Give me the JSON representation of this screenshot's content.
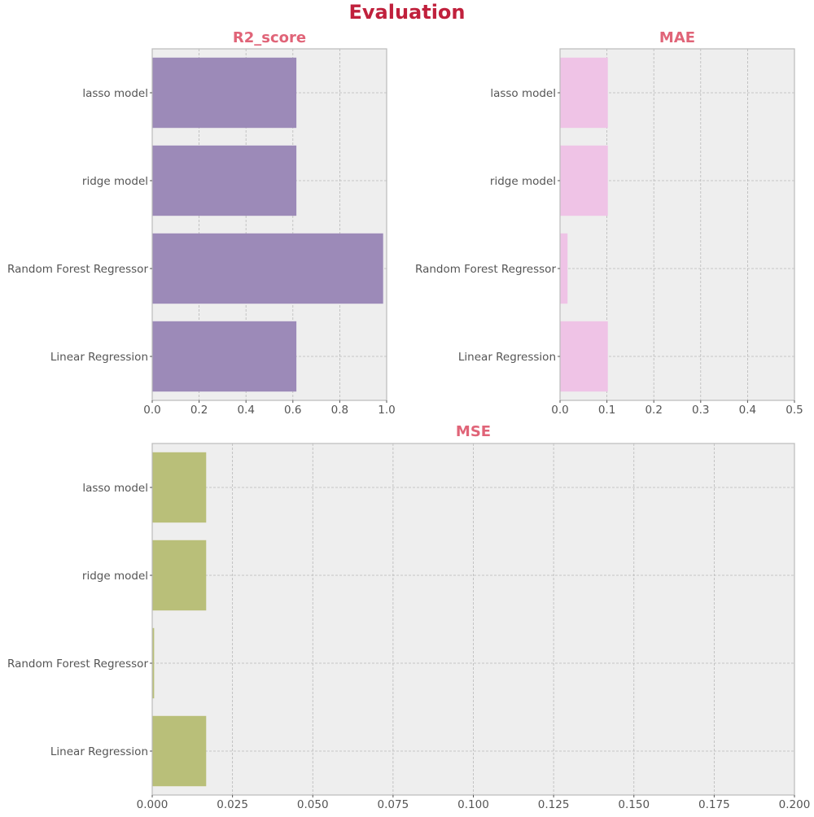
{
  "figure": {
    "title": "Evaluation",
    "title_color": "#C0203C",
    "subplot_title_color": "#E06478"
  },
  "style": {
    "axes_background": "#EEEEEE",
    "grid_color": "#B8B8B8",
    "spine_color": "#BBBBBB"
  },
  "chart_data": [
    {
      "type": "bar",
      "orientation": "horizontal",
      "title": "R2_score",
      "xlabel": "",
      "ylabel": "",
      "categories": [
        "Linear Regression",
        "Random Forest Regressor",
        "ridge model",
        "lasso model"
      ],
      "values": [
        0.615,
        0.985,
        0.615,
        0.615
      ],
      "xlim": [
        0,
        1.0
      ],
      "xticks": [
        "0.0",
        "0.2",
        "0.4",
        "0.6",
        "0.8",
        "1.0"
      ],
      "xtick_values": [
        0,
        0.2,
        0.4,
        0.6,
        0.8,
        1.0
      ],
      "grid": true,
      "bar_color": "#9C8AB8"
    },
    {
      "type": "bar",
      "orientation": "horizontal",
      "title": "MAE",
      "xlabel": "",
      "ylabel": "",
      "categories": [
        "Linear Regression",
        "Random Forest Regressor",
        "ridge model",
        "lasso model"
      ],
      "values": [
        0.102,
        0.016,
        0.102,
        0.102
      ],
      "xlim": [
        0,
        0.5
      ],
      "xticks": [
        "0.0",
        "0.1",
        "0.2",
        "0.3",
        "0.4",
        "0.5"
      ],
      "xtick_values": [
        0,
        0.1,
        0.2,
        0.3,
        0.4,
        0.5
      ],
      "grid": true,
      "bar_color": "#EFC3E6"
    },
    {
      "type": "bar",
      "orientation": "horizontal",
      "title": "MSE",
      "xlabel": "",
      "ylabel": "",
      "categories": [
        "Linear Regression",
        "Random Forest Regressor",
        "ridge model",
        "lasso model"
      ],
      "values": [
        0.0168,
        0.0006,
        0.0168,
        0.0168
      ],
      "xlim": [
        0,
        0.2
      ],
      "xticks": [
        "0.000",
        "0.025",
        "0.050",
        "0.075",
        "0.100",
        "0.125",
        "0.150",
        "0.175",
        "0.200"
      ],
      "xtick_values": [
        0,
        0.025,
        0.05,
        0.075,
        0.1,
        0.125,
        0.15,
        0.175,
        0.2
      ],
      "grid": true,
      "bar_color": "#B9BF79"
    }
  ]
}
